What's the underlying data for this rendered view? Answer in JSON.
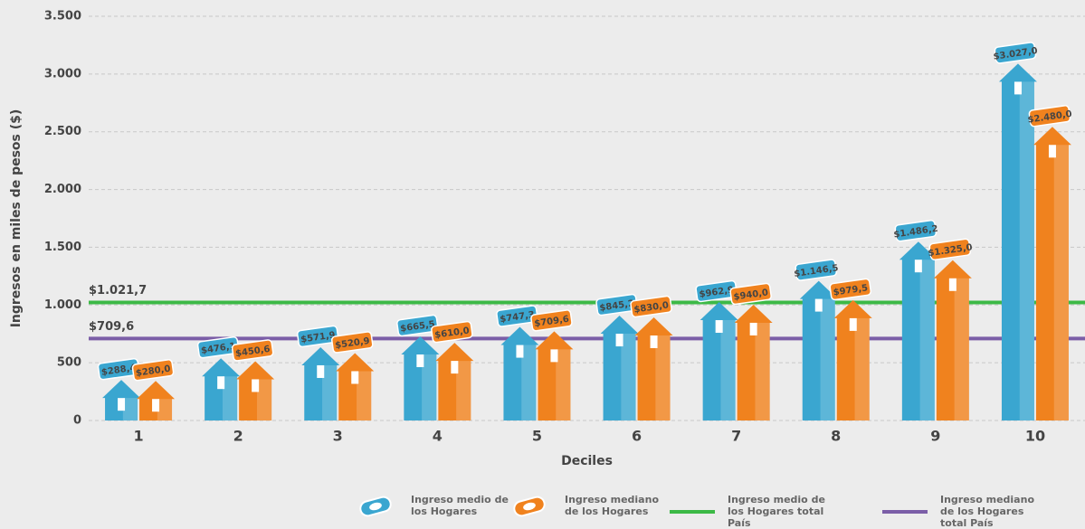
{
  "chart_data": {
    "type": "bar",
    "y_label": "Ingresos en miles de pesos ($)",
    "x_label": "Deciles",
    "categories": [
      "1",
      "2",
      "3",
      "4",
      "5",
      "6",
      "7",
      "8",
      "9",
      "10"
    ],
    "series": [
      {
        "name": "Ingreso medio de los Hogares",
        "color": "#3aa6d0",
        "values": [
          288.4,
          476.1,
          571.9,
          665.5,
          747.3,
          845.2,
          962.9,
          1146.5,
          1486.2,
          3027.0
        ],
        "value_labels": [
          "$288,4",
          "$476,1",
          "$571,9",
          "$665,5",
          "$747,3",
          "$845,2",
          "$962,9",
          "$1.146,5",
          "$1.486,2",
          "$3.027,0"
        ]
      },
      {
        "name": "Ingreso mediano de los Hogares",
        "color": "#f0821e",
        "values": [
          280.0,
          450.6,
          520.9,
          610.0,
          709.6,
          830.0,
          940.0,
          979.5,
          1325.0,
          2480.0
        ],
        "value_labels": [
          "$280,0",
          "$450,6",
          "$520,9",
          "$610,0",
          "$709,6",
          "$830,0",
          "$940,0",
          "$979,5",
          "$1.325,0",
          "$2.480,0"
        ]
      }
    ],
    "reference_lines": [
      {
        "name": "Ingreso medio de los Hogares total País",
        "color": "#3cb946",
        "value": 1021.7,
        "value_label": "$1.021,7"
      },
      {
        "name": "Ingreso mediano de los Hogares total País",
        "color": "#7b5ea7",
        "value": 709.6,
        "value_label": "$709,6"
      }
    ],
    "ylim": [
      0,
      3500
    ],
    "yticks": [
      0,
      500,
      {
        "value": 1000,
        "label": "1.000"
      },
      {
        "value": 1500,
        "label": "1.500"
      },
      {
        "value": 2000,
        "label": "2.000"
      },
      {
        "value": 2500,
        "label": "2.500"
      },
      {
        "value": 3000,
        "label": "3.000"
      },
      {
        "value": 3500,
        "label": "3.500"
      }
    ],
    "grid": true
  }
}
